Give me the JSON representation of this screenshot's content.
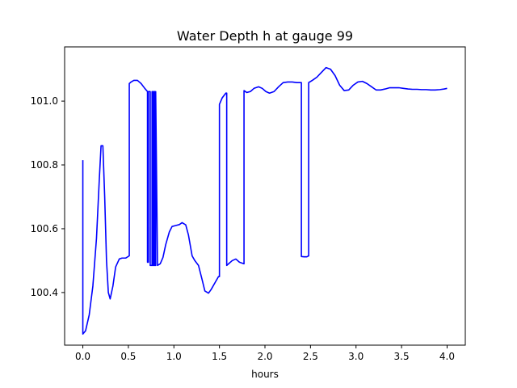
{
  "chart_data": {
    "type": "line",
    "title": "Water Depth h at gauge 99",
    "xlabel": "hours",
    "ylabel": "",
    "xlim": [
      -0.2,
      4.2
    ],
    "ylim": [
      100.235,
      101.17
    ],
    "xticks": [
      0.0,
      0.5,
      1.0,
      1.5,
      2.0,
      2.5,
      3.0,
      3.5,
      4.0
    ],
    "xtick_labels": [
      "0.0",
      "0.5",
      "1.0",
      "1.5",
      "2.0",
      "2.5",
      "3.0",
      "3.5",
      "4.0"
    ],
    "yticks": [
      100.4,
      100.6,
      100.8,
      101.0
    ],
    "ytick_labels": [
      "100.4",
      "100.6",
      "100.8",
      "101.0"
    ],
    "grid": false,
    "series": [
      {
        "color": "#0000ff",
        "x": [
          0.0,
          0.0,
          0.03,
          0.07,
          0.11,
          0.15,
          0.18,
          0.2,
          0.22,
          0.24,
          0.26,
          0.28,
          0.3,
          0.33,
          0.36,
          0.4,
          0.43,
          0.47,
          0.51,
          0.51,
          0.53,
          0.56,
          0.6,
          0.64,
          0.68,
          0.71,
          0.71,
          0.72,
          0.72,
          0.74,
          0.74,
          0.76,
          0.76,
          0.77,
          0.77,
          0.78,
          0.78,
          0.79,
          0.79,
          0.8,
          0.8,
          0.82,
          0.85,
          0.88,
          0.91,
          0.95,
          0.98,
          1.02,
          1.06,
          1.09,
          1.13,
          1.16,
          1.2,
          1.23,
          1.27,
          1.31,
          1.34,
          1.38,
          1.41,
          1.45,
          1.49,
          1.5,
          1.5,
          1.53,
          1.57,
          1.58,
          1.58,
          1.6,
          1.64,
          1.68,
          1.72,
          1.77,
          1.77,
          1.8,
          1.84,
          1.88,
          1.93,
          1.97,
          2.01,
          2.05,
          2.1,
          2.15,
          2.2,
          2.25,
          2.3,
          2.35,
          2.4,
          2.4,
          2.43,
          2.46,
          2.48,
          2.48,
          2.52,
          2.57,
          2.62,
          2.67,
          2.72,
          2.77,
          2.82,
          2.87,
          2.92,
          2.97,
          3.02,
          3.07,
          3.12,
          3.17,
          3.22,
          3.27,
          3.32,
          3.37,
          3.42,
          3.47,
          3.52,
          3.57,
          3.62,
          3.67,
          3.72,
          3.77,
          3.82,
          3.87,
          3.92,
          3.97,
          4.0
        ],
        "y": [
          100.815,
          100.27,
          100.28,
          100.33,
          100.42,
          100.57,
          100.75,
          100.86,
          100.86,
          100.7,
          100.5,
          100.4,
          100.38,
          100.42,
          100.48,
          100.505,
          100.508,
          100.508,
          100.515,
          101.055,
          101.06,
          101.065,
          101.065,
          101.055,
          101.04,
          101.03,
          100.495,
          100.495,
          101.03,
          101.03,
          100.485,
          100.485,
          101.03,
          101.03,
          100.485,
          100.485,
          101.03,
          101.03,
          100.485,
          100.485,
          101.03,
          100.485,
          100.49,
          100.51,
          100.55,
          100.59,
          100.607,
          100.61,
          100.613,
          100.619,
          100.612,
          100.58,
          100.515,
          100.5,
          100.485,
          100.44,
          100.405,
          100.398,
          100.41,
          100.43,
          100.45,
          100.45,
          100.99,
          101.01,
          101.025,
          101.025,
          100.485,
          100.49,
          100.5,
          100.505,
          100.495,
          100.49,
          101.033,
          101.027,
          101.03,
          101.04,
          101.045,
          101.04,
          101.03,
          101.025,
          101.03,
          101.045,
          101.058,
          101.06,
          101.06,
          101.058,
          101.058,
          100.513,
          100.512,
          100.512,
          100.515,
          101.058,
          101.065,
          101.075,
          101.09,
          101.105,
          101.1,
          101.08,
          101.05,
          101.033,
          101.035,
          101.05,
          101.06,
          101.062,
          101.055,
          101.045,
          101.035,
          101.035,
          101.038,
          101.042,
          101.042,
          101.042,
          101.04,
          101.038,
          101.037,
          101.037,
          101.036,
          101.036,
          101.035,
          101.035,
          101.036,
          101.038,
          101.04
        ]
      }
    ]
  }
}
